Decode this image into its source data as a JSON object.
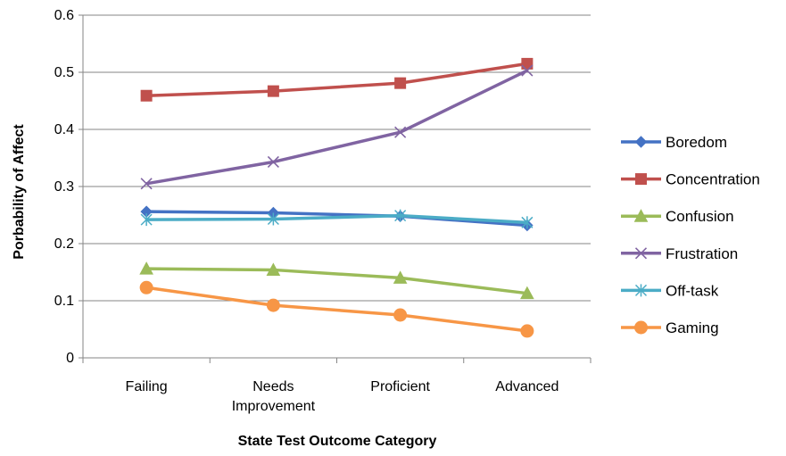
{
  "chart_data": {
    "type": "line",
    "title": "",
    "xlabel": "State Test Outcome Category",
    "ylabel": "Porbability of Affect",
    "categories": [
      [
        "Failing"
      ],
      [
        "Needs",
        "Improvement"
      ],
      [
        "Proficient"
      ],
      [
        "Advanced"
      ]
    ],
    "ylim": [
      0,
      0.6
    ],
    "yticks": [
      "0",
      "0.1",
      "0.2",
      "0.3",
      "0.4",
      "0.5",
      "0.6"
    ],
    "grid": true,
    "legend": "right",
    "series": [
      {
        "name": "Boredom",
        "color": "#4472C4",
        "marker": "diamond",
        "values": [
          0.256,
          0.254,
          0.248,
          0.232
        ]
      },
      {
        "name": "Concentration",
        "color": "#C0504D",
        "marker": "square",
        "values": [
          0.459,
          0.467,
          0.481,
          0.515
        ]
      },
      {
        "name": "Confusion",
        "color": "#9BBB59",
        "marker": "triangle",
        "values": [
          0.156,
          0.154,
          0.14,
          0.113
        ]
      },
      {
        "name": "Frustration",
        "color": "#8064A2",
        "marker": "x",
        "values": [
          0.305,
          0.343,
          0.395,
          0.503
        ]
      },
      {
        "name": "Off-task",
        "color": "#4BACC6",
        "marker": "star",
        "values": [
          0.242,
          0.243,
          0.249,
          0.237
        ]
      },
      {
        "name": "Gaming",
        "color": "#F79646",
        "marker": "circle",
        "values": [
          0.123,
          0.092,
          0.075,
          0.047
        ]
      }
    ]
  }
}
